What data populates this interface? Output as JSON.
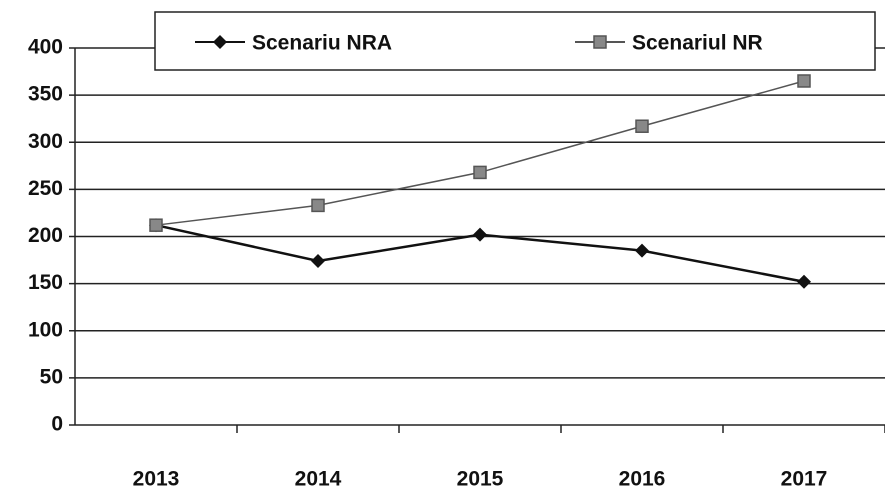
{
  "chart_data": {
    "type": "line",
    "categories": [
      "2013",
      "2014",
      "2015",
      "2016",
      "2017"
    ],
    "series": [
      {
        "name": "Scenariu NRA",
        "color": "#111111",
        "marker": "diamond",
        "values": [
          212,
          174,
          202,
          185,
          152
        ]
      },
      {
        "name": "Scenariul NR",
        "color": "#555555",
        "marker": "square",
        "values": [
          212,
          233,
          268,
          317,
          365
        ]
      }
    ],
    "ylim": [
      0,
      400
    ],
    "yticks": [
      0,
      50,
      100,
      150,
      200,
      250,
      300,
      350,
      400
    ],
    "grid": true,
    "legend": "top"
  }
}
